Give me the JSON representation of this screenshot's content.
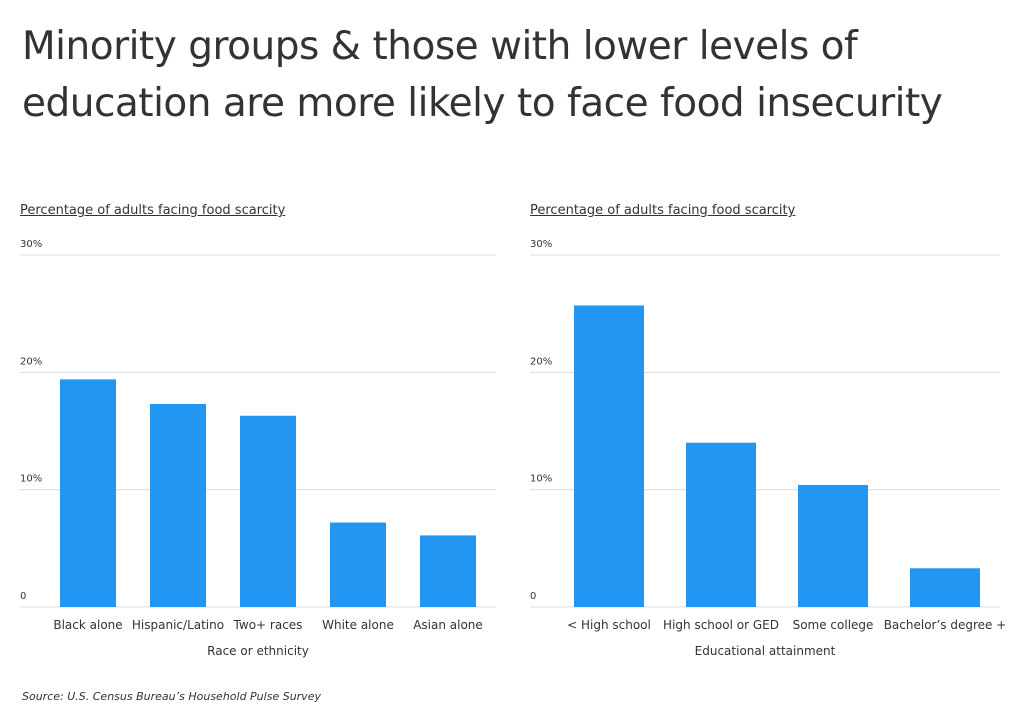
{
  "title": "Minority groups & those with lower levels of education are more likely to face food insecurity",
  "source": "Source:  U.S. Census Bureau’s Household Pulse Survey",
  "colors": {
    "bar": "#2196F3",
    "grid": "#dcdcdc",
    "text": "#333333"
  },
  "chart_data": [
    {
      "type": "bar",
      "title": "Percentage of adults facing food scarcity",
      "xlabel": "Race or ethnicity",
      "ylabel": "",
      "ylim": [
        0,
        30
      ],
      "yticks": [
        0,
        10,
        20,
        30
      ],
      "ytick_labels": [
        "0",
        "10%",
        "20%",
        "30%"
      ],
      "categories": [
        "Black alone",
        "Hispanic/Latino",
        "Two+ races",
        "White alone",
        "Asian alone"
      ],
      "values": [
        19.4,
        17.3,
        16.3,
        7.2,
        6.1
      ]
    },
    {
      "type": "bar",
      "title": "Percentage of adults facing food scarcity",
      "xlabel": "Educational attainment",
      "ylabel": "",
      "ylim": [
        0,
        30
      ],
      "yticks": [
        0,
        10,
        20,
        30
      ],
      "ytick_labels": [
        "0",
        "10%",
        "20%",
        "30%"
      ],
      "categories": [
        "< High school",
        "High school or GED",
        "Some college",
        "Bachelor’s degree +"
      ],
      "values": [
        25.7,
        14.0,
        10.4,
        3.3
      ]
    }
  ]
}
